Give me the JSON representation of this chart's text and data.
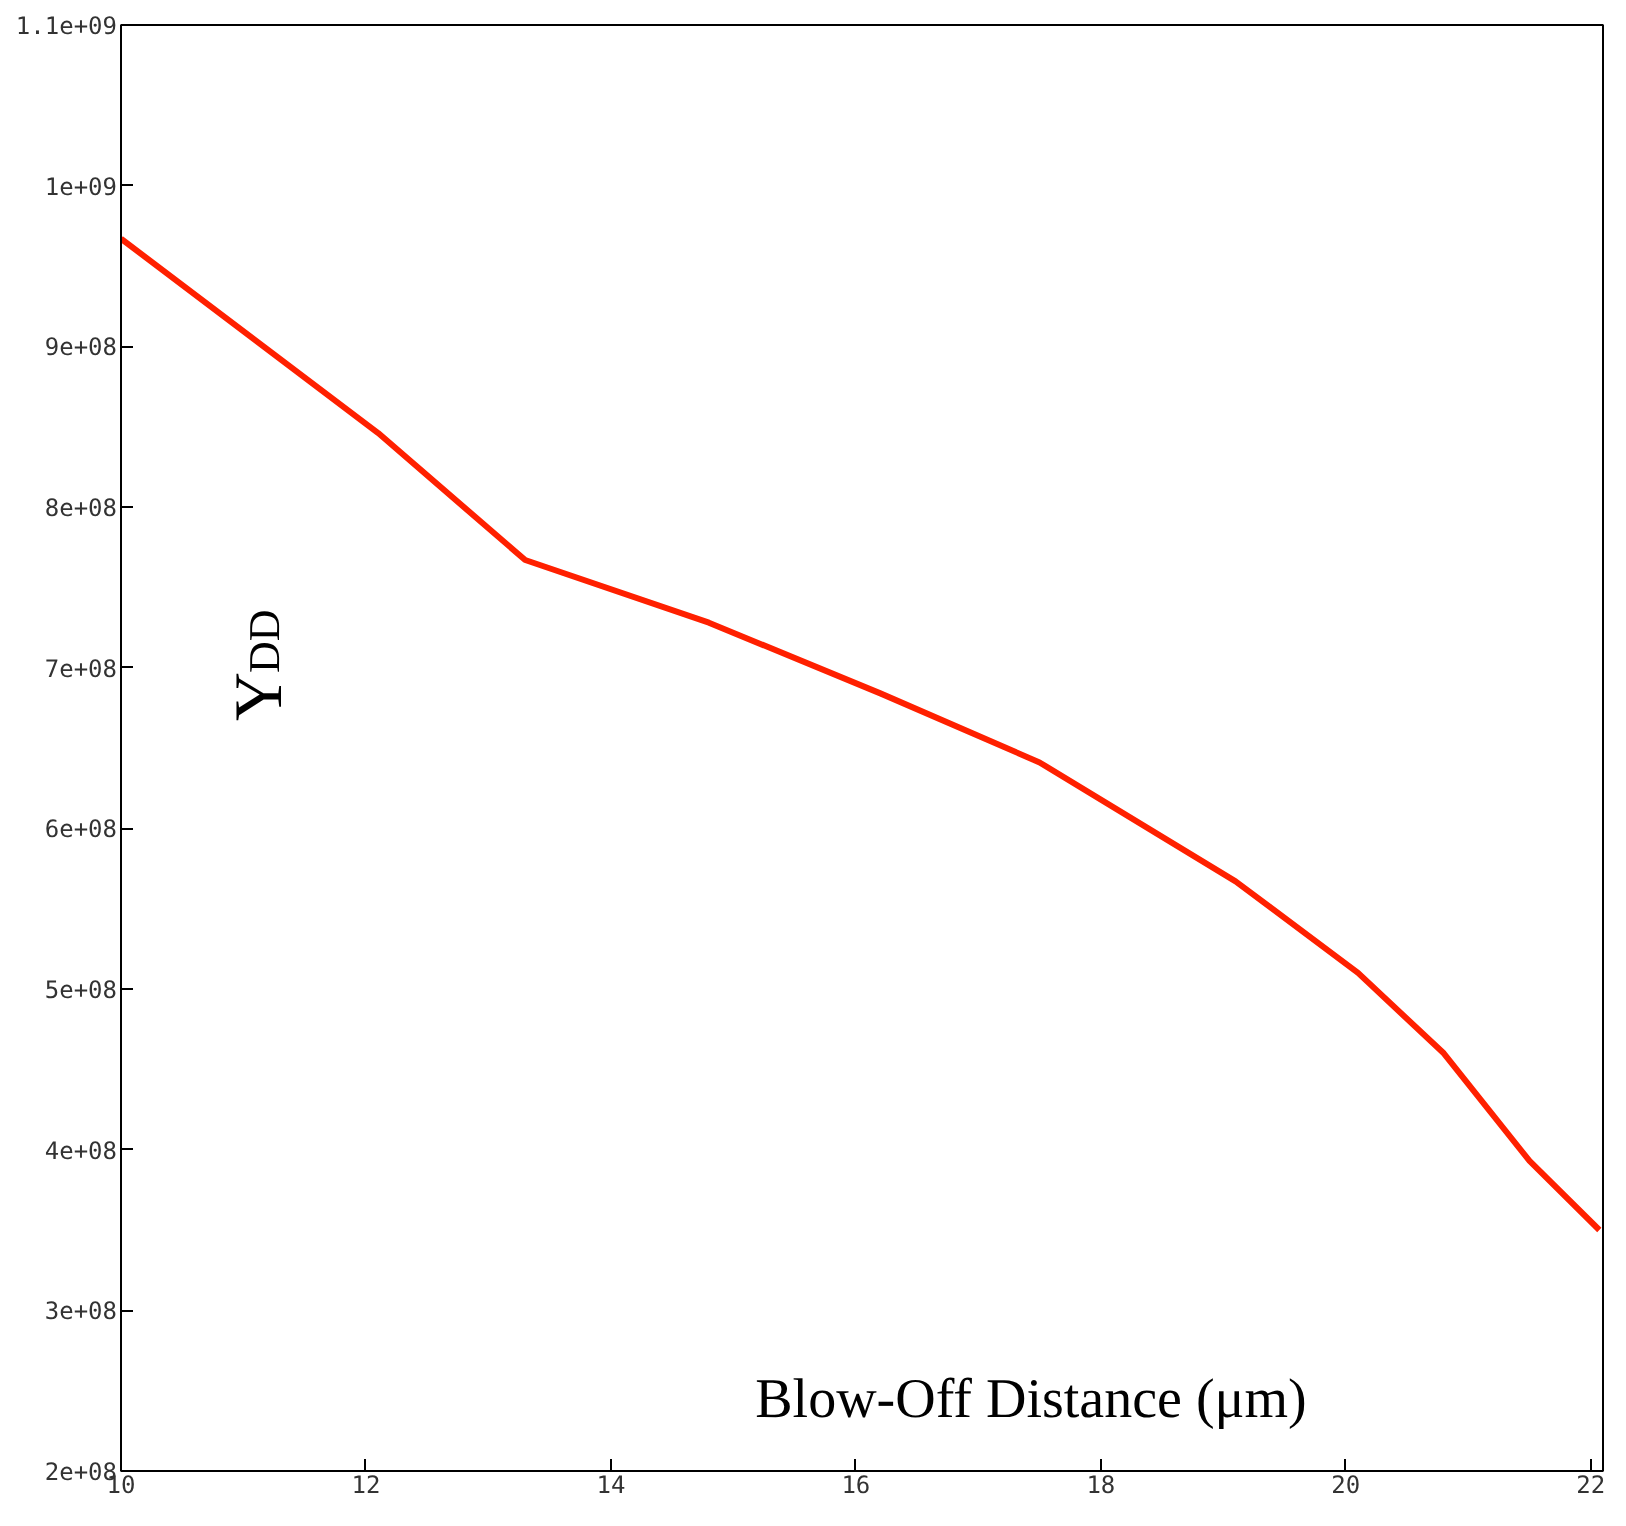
{
  "chart_data": {
    "type": "line",
    "xlabel": "Blow-Off Distance (μm)",
    "ylabel": "Y$_{DD}$",
    "x": [
      10,
      12.1,
      13.3,
      14.8,
      16.2,
      17.5,
      19.1,
      20.1,
      20.8,
      21.5,
      22.07
    ],
    "series": [
      {
        "color": "#ff2000",
        "values": [
          967000000,
          846000000,
          767000000,
          728000000,
          684000000,
          641000000,
          567000000,
          510000000,
          460000000,
          393000000,
          350000000
        ]
      }
    ],
    "xlim": [
      10,
      22.1
    ],
    "ylim": [
      200000000,
      1100000000
    ],
    "xticks": [
      10,
      12,
      14,
      16,
      18,
      20,
      22
    ],
    "yticks": [
      {
        "value": 200000000,
        "label": "2e+08"
      },
      {
        "value": 300000000,
        "label": "3e+08"
      },
      {
        "value": 400000000,
        "label": "4e+08"
      },
      {
        "value": 500000000,
        "label": "5e+08"
      },
      {
        "value": 600000000,
        "label": "6e+08"
      },
      {
        "value": 700000000,
        "label": "7e+08"
      },
      {
        "value": 800000000,
        "label": "8e+08"
      },
      {
        "value": 900000000,
        "label": "9e+08"
      },
      {
        "value": 1000000000,
        "label": "1e+09"
      },
      {
        "value": 1100000000,
        "label": "1.1e+09"
      }
    ],
    "grid": false,
    "marker": "none",
    "line_style": "solid"
  }
}
